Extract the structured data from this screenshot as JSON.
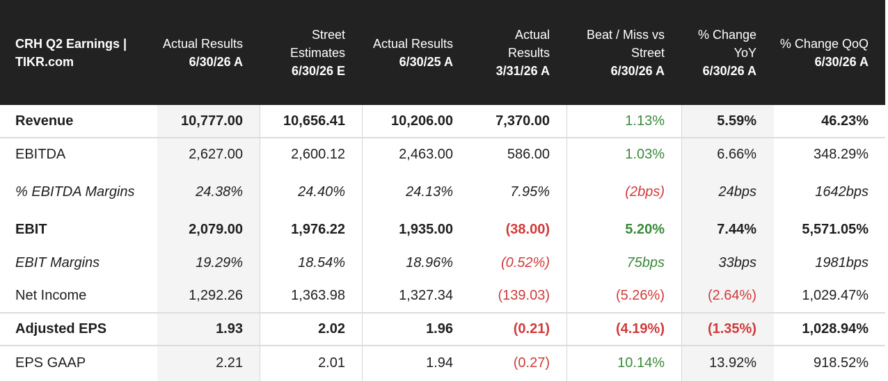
{
  "header": {
    "title": "CRH Q2 Earnings | TIKR.com",
    "columns": [
      {
        "label": "Actual Results",
        "date": "6/30/26 A"
      },
      {
        "label": "Street Estimates",
        "date": "6/30/26 E"
      },
      {
        "label": "Actual Results",
        "date": "6/30/25 A"
      },
      {
        "label": "Actual Results",
        "date": "3/31/26 A"
      },
      {
        "label": "Beat / Miss vs Street",
        "date": "6/30/26 A"
      },
      {
        "label": "% Change YoY",
        "date": "6/30/26 A"
      },
      {
        "label": "% Change QoQ",
        "date": "6/30/26 A"
      }
    ]
  },
  "rows": [
    {
      "label": "Revenue",
      "cells": [
        "10,777.00",
        "10,656.41",
        "10,206.00",
        "7,370.00",
        "1.13%",
        "5.59%",
        "46.23%"
      ]
    },
    {
      "label": "EBITDA",
      "cells": [
        "2,627.00",
        "2,600.12",
        "2,463.00",
        "586.00",
        "1.03%",
        "6.66%",
        "348.29%"
      ]
    },
    {
      "label": "% EBITDA Margins",
      "cells": [
        "24.38%",
        "24.40%",
        "24.13%",
        "7.95%",
        "(2bps)",
        "24bps",
        "1642bps"
      ]
    },
    {
      "label": "EBIT",
      "cells": [
        "2,079.00",
        "1,976.22",
        "1,935.00",
        "(38.00)",
        "5.20%",
        "7.44%",
        "5,571.05%"
      ]
    },
    {
      "label": "EBIT Margins",
      "cells": [
        "19.29%",
        "18.54%",
        "18.96%",
        "(0.52%)",
        "75bps",
        "33bps",
        "1981bps"
      ]
    },
    {
      "label": "Net Income",
      "cells": [
        "1,292.26",
        "1,363.98",
        "1,327.34",
        "(139.03)",
        "(5.26%)",
        "(2.64%)",
        "1,029.47%"
      ]
    },
    {
      "label": "Adjusted EPS",
      "cells": [
        "1.93",
        "2.02",
        "1.96",
        "(0.21)",
        "(4.19%)",
        "(1.35%)",
        "1,028.94%"
      ]
    },
    {
      "label": "EPS GAAP",
      "cells": [
        "2.21",
        "2.01",
        "1.94",
        "(0.27)",
        "10.14%",
        "13.92%",
        "918.52%"
      ]
    }
  ],
  "colors": {
    "header_bg": "#222222",
    "negative": "#d13a3a",
    "positive": "#3a8a3a",
    "shade": "#f4f4f4"
  }
}
